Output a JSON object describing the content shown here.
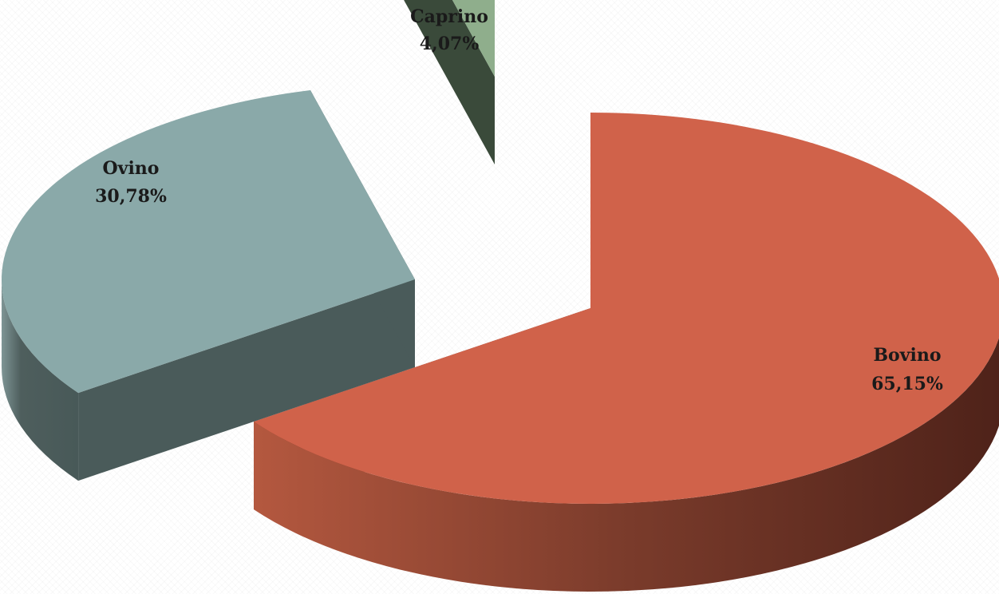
{
  "chart_data": {
    "type": "pie",
    "style": "3d-exploded",
    "slices": [
      {
        "label": "Bovino",
        "value_label": "65,15%",
        "value": 65.15,
        "color": "#D0624A",
        "side_color": "#7A3526"
      },
      {
        "label": "Ovino",
        "value_label": "30,78%",
        "value": 30.78,
        "color": "#8AA9A9",
        "side_color": "#4A5B5A"
      },
      {
        "label": "Caprino",
        "value_label": "4,07%",
        "value": 4.07,
        "color": "#8FAE8C",
        "side_color": "#3A4A3A"
      }
    ]
  }
}
